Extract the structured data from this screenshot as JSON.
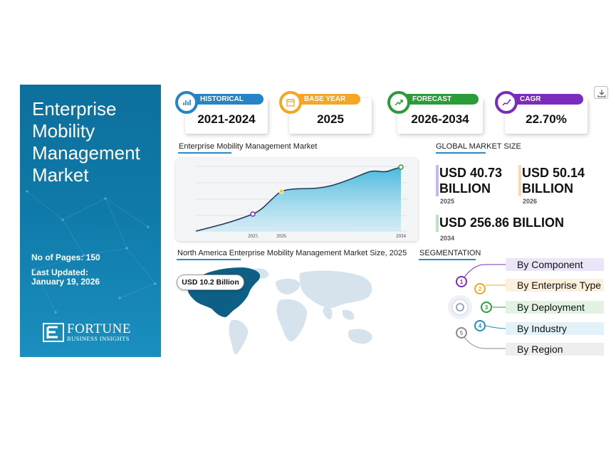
{
  "title": "Enterprise Mobility Management Market",
  "meta": {
    "pages": "No of Pages: 150",
    "updated_label": "Last Updated:",
    "updated_date": "January 19, 2026"
  },
  "logo": {
    "word": "FORTUNE",
    "sub": "BUSINESS INSIGHTS"
  },
  "cards": [
    {
      "label": "HISTORICAL PERIOD",
      "value": "2021-2024",
      "color": "#2583c6",
      "icon": "bar-chart-icon"
    },
    {
      "label": "BASE YEAR",
      "value": "2025",
      "color": "#f5a623",
      "icon": "calendar-icon"
    },
    {
      "label": "FORECAST PERIOD",
      "value": "2026-2034",
      "color": "#2a9d3a",
      "icon": "forecast-icon"
    },
    {
      "label": "CAGR",
      "value": "22.70%",
      "color": "#7b2cbf",
      "icon": "growth-icon"
    }
  ],
  "chart": {
    "heading": "Enterprise Mobility Management Market",
    "ticks": [
      "2025",
      "2026",
      "2034"
    ]
  },
  "chart_data": {
    "type": "area",
    "x": [
      "2025",
      "2026",
      "2034"
    ],
    "title": "Enterprise Mobility Management Market",
    "xlabel": "",
    "ylabel": "",
    "grid": true,
    "color": "#3fb6dc"
  },
  "market_size": {
    "heading": "GLOBAL MARKET SIZE",
    "items": [
      {
        "value_line1": "USD 40.73",
        "value_line2": "BILLION",
        "year": "2025",
        "color": "#c9b6f2"
      },
      {
        "value_line1": "USD 50.14",
        "value_line2": "BILLION",
        "year": "2026",
        "color": "#fcd9b0"
      },
      {
        "value_line1": "USD 256.86 BILLION",
        "value_line2": "",
        "year": "2034",
        "color": "#bde3c1"
      }
    ]
  },
  "map": {
    "heading": "North America Enterprise Mobility Management Market Size, 2025",
    "badge": "USD 10.2 Billion",
    "highlight_color": "#0d5f86",
    "base_color": "#d7e3ec"
  },
  "segmentation": {
    "heading": "SEGMENTATION",
    "items": [
      {
        "num": "1",
        "label": "By Component",
        "color": "#7b2cbf",
        "bg": "#ece4f7"
      },
      {
        "num": "2",
        "label": "By Enterprise Type",
        "color": "#f5a623",
        "bg": "#fdf1de"
      },
      {
        "num": "3",
        "label": "By Deployment",
        "color": "#2a9d3a",
        "bg": "#e2f3e4"
      },
      {
        "num": "4",
        "label": "By Industry",
        "color": "#1f8fb5",
        "bg": "#e3f2f8"
      },
      {
        "num": "5",
        "label": "By Region",
        "color": "#8a8a8a",
        "bg": "#eeeeee"
      }
    ]
  }
}
